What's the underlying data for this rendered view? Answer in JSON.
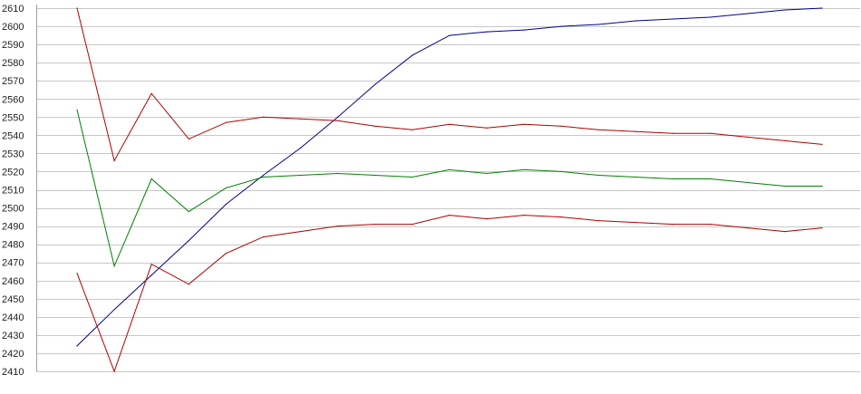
{
  "chart_data": {
    "type": "line",
    "title": "",
    "xlabel": "",
    "ylabel": "",
    "ylim": [
      2410,
      2610
    ],
    "yticks": [
      2410,
      2420,
      2430,
      2440,
      2450,
      2460,
      2470,
      2480,
      2490,
      2500,
      2510,
      2520,
      2530,
      2540,
      2550,
      2560,
      2570,
      2580,
      2590,
      2600,
      2610
    ],
    "grid": true,
    "legend": "none",
    "x": [
      1,
      2,
      3,
      4,
      5,
      6,
      7,
      8,
      9,
      10,
      11,
      12,
      13,
      14,
      15,
      16,
      17,
      18,
      19,
      20,
      21
    ],
    "series": [
      {
        "color": "#00008b",
        "values": [
          2424,
          2444,
          2463,
          2482,
          2502,
          2518,
          2533,
          2550,
          2568,
          2584,
          2595,
          2597,
          2598,
          2600,
          2601,
          2603,
          2604,
          2605,
          2607,
          2609,
          2610
        ]
      },
      {
        "color": "#b00000",
        "values": [
          2610,
          2526,
          2563,
          2538,
          2547,
          2550,
          2549,
          2548,
          2545,
          2543,
          2546,
          2544,
          2546,
          2545,
          2543,
          2542,
          2541,
          2541,
          2539,
          2537,
          2535
        ]
      },
      {
        "color": "#008000",
        "values": [
          2554,
          2468,
          2516,
          2498,
          2511,
          2517,
          2518,
          2519,
          2518,
          2517,
          2521,
          2519,
          2521,
          2520,
          2518,
          2517,
          2516,
          2516,
          2514,
          2512,
          2512
        ]
      },
      {
        "color": "#b00000",
        "values": [
          2464,
          2410,
          2469,
          2458,
          2475,
          2484,
          2487,
          2490,
          2491,
          2491,
          2496,
          2494,
          2496,
          2495,
          2493,
          2492,
          2491,
          2491,
          2489,
          2487,
          2489
        ]
      }
    ]
  }
}
